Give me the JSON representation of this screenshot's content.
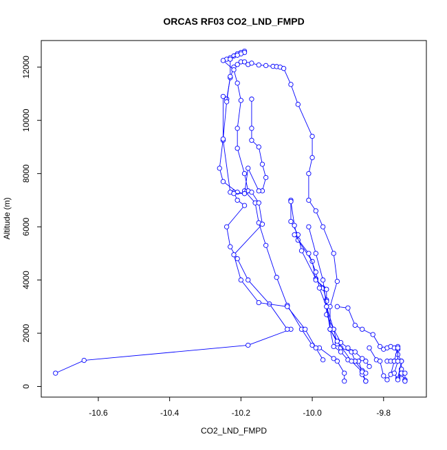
{
  "chart_data": {
    "type": "line",
    "title": "ORCAS RF03 CO2_LND_FMPD",
    "xlabel": "CO2_LND_FMPD",
    "ylabel": "Altitude (m)",
    "xlim": [
      -10.76,
      -9.68
    ],
    "ylim": [
      -400,
      13000
    ],
    "xticks": [
      -10.6,
      -10.4,
      -10.2,
      -10.0,
      -9.8
    ],
    "xtick_labels": [
      "-10.6",
      "-10.4",
      "-10.2",
      "-10.0",
      "-9.8"
    ],
    "yticks": [
      0,
      2000,
      4000,
      6000,
      8000,
      10000,
      12000
    ],
    "ytick_labels": [
      "0",
      "2000",
      "4000",
      "6000",
      "8000",
      "10000",
      "12000"
    ],
    "grid": false,
    "legend": "none",
    "marker": "open-circle",
    "line_color": "#0000ff",
    "series": [
      {
        "points": [
          [
            -10.72,
            500
          ],
          [
            -10.64,
            980
          ],
          [
            -10.18,
            1550
          ],
          [
            -10.06,
            2150
          ],
          [
            -10.07,
            2150
          ],
          [
            -10.12,
            3100
          ],
          [
            -10.18,
            4000
          ],
          [
            -10.21,
            4800
          ],
          [
            -10.23,
            5250
          ],
          [
            -10.24,
            6000
          ],
          [
            -10.19,
            6800
          ],
          [
            -10.21,
            7000
          ],
          [
            -10.22,
            7300
          ],
          [
            -10.23,
            7300
          ],
          [
            -10.25,
            9250
          ],
          [
            -10.25,
            10900
          ],
          [
            -10.24,
            10800
          ],
          [
            -10.24,
            10800
          ],
          [
            -10.23,
            11600
          ],
          [
            -10.22,
            12000
          ],
          [
            -10.21,
            12100
          ],
          [
            -10.2,
            12200
          ],
          [
            -10.19,
            12200
          ],
          [
            -10.18,
            12100
          ],
          [
            -10.17,
            12150
          ],
          [
            -10.15,
            12080
          ],
          [
            -10.13,
            12060
          ],
          [
            -10.11,
            12030
          ],
          [
            -10.1,
            12020
          ],
          [
            -10.09,
            12000
          ],
          [
            -10.08,
            11950
          ],
          [
            -10.06,
            11350
          ],
          [
            -10.04,
            10600
          ],
          [
            -10.0,
            9400
          ],
          [
            -10.0,
            8600
          ],
          [
            -10.01,
            8000
          ],
          [
            -10.01,
            7000
          ],
          [
            -9.99,
            6600
          ],
          [
            -9.97,
            6000
          ],
          [
            -9.94,
            5000
          ],
          [
            -9.93,
            3950
          ],
          [
            -9.95,
            3000
          ],
          [
            -9.95,
            2150
          ],
          [
            -9.93,
            1650
          ],
          [
            -9.92,
            1450
          ],
          [
            -9.89,
            1300
          ],
          [
            -9.88,
            950
          ],
          [
            -9.87,
            950
          ],
          [
            -9.86,
            550
          ],
          [
            -9.85,
            200
          ],
          [
            -9.85,
            200
          ]
        ]
      },
      {
        "points": [
          [
            -10.19,
            12600
          ],
          [
            -10.2,
            12550
          ],
          [
            -10.21,
            12500
          ],
          [
            -10.22,
            12420
          ],
          [
            -10.23,
            12350
          ],
          [
            -10.24,
            12300
          ],
          [
            -10.25,
            12250
          ],
          [
            -10.22,
            11900
          ],
          [
            -10.21,
            11400
          ],
          [
            -10.2,
            10750
          ],
          [
            -10.21,
            9700
          ],
          [
            -10.21,
            8950
          ],
          [
            -10.19,
            8000
          ],
          [
            -10.18,
            7350
          ],
          [
            -10.19,
            7350
          ],
          [
            -10.16,
            6900
          ],
          [
            -10.15,
            6150
          ],
          [
            -10.13,
            5300
          ],
          [
            -10.1,
            4100
          ],
          [
            -10.07,
            3050
          ],
          [
            -10.03,
            2150
          ],
          [
            -10.0,
            1550
          ],
          [
            -9.98,
            1450
          ],
          [
            -9.94,
            1050
          ],
          [
            -9.93,
            950
          ],
          [
            -9.91,
            500
          ],
          [
            -9.91,
            200
          ]
        ]
      },
      {
        "points": [
          [
            -10.19,
            12550
          ],
          [
            -10.2,
            12500
          ],
          [
            -10.21,
            12450
          ],
          [
            -10.23,
            12300
          ],
          [
            -10.23,
            11650
          ],
          [
            -10.24,
            10700
          ],
          [
            -10.25,
            9300
          ],
          [
            -10.26,
            8200
          ],
          [
            -10.25,
            7700
          ],
          [
            -10.21,
            7300
          ],
          [
            -10.19,
            7250
          ],
          [
            -10.17,
            7300
          ],
          [
            -10.15,
            6900
          ],
          [
            -10.14,
            6100
          ],
          [
            -10.22,
            4950
          ],
          [
            -10.2,
            4000
          ],
          [
            -10.15,
            3150
          ],
          [
            -10.07,
            3000
          ],
          [
            -10.02,
            2150
          ],
          [
            -9.99,
            1450
          ],
          [
            -9.97,
            1000
          ]
        ]
      },
      {
        "points": [
          [
            -10.17,
            10800
          ],
          [
            -10.17,
            9700
          ],
          [
            -10.17,
            9250
          ],
          [
            -10.15,
            9000
          ],
          [
            -10.14,
            8350
          ],
          [
            -10.13,
            7850
          ],
          [
            -10.14,
            7350
          ],
          [
            -10.15,
            7350
          ],
          [
            -10.18,
            8200
          ],
          [
            -10.19,
            7250
          ],
          [
            -10.22,
            7250
          ]
        ]
      },
      {
        "points": [
          [
            -10.06,
            7000
          ],
          [
            -10.06,
            6200
          ],
          [
            -10.04,
            5700
          ],
          [
            -10.03,
            5100
          ],
          [
            -9.99,
            4050
          ],
          [
            -9.97,
            3700
          ],
          [
            -9.96,
            3250
          ],
          [
            -9.95,
            2150
          ],
          [
            -9.94,
            1500
          ],
          [
            -9.92,
            1300
          ],
          [
            -9.9,
            1000
          ],
          [
            -9.88,
            950
          ],
          [
            -9.86,
            600
          ],
          [
            -9.86,
            450
          ],
          [
            -9.85,
            200
          ]
        ]
      },
      {
        "points": [
          [
            -10.06,
            6950
          ],
          [
            -10.05,
            6050
          ],
          [
            -10.04,
            5500
          ],
          [
            -10.0,
            4700
          ],
          [
            -9.99,
            4000
          ],
          [
            -9.96,
            3650
          ],
          [
            -9.96,
            3200
          ],
          [
            -9.96,
            2700
          ],
          [
            -9.94,
            2150
          ],
          [
            -9.93,
            1600
          ]
        ]
      },
      {
        "points": [
          [
            -10.05,
            5700
          ],
          [
            -10.01,
            5000
          ],
          [
            -9.99,
            4300
          ],
          [
            -9.98,
            3700
          ],
          [
            -9.96,
            3000
          ],
          [
            -9.94,
            2150
          ],
          [
            -9.92,
            1650
          ],
          [
            -9.9,
            1450
          ],
          [
            -9.88,
            1300
          ],
          [
            -9.86,
            1050
          ],
          [
            -9.85,
            950
          ],
          [
            -9.84,
            750
          ]
        ]
      },
      {
        "points": [
          [
            -10.01,
            6000
          ],
          [
            -9.99,
            5000
          ],
          [
            -9.97,
            4000
          ],
          [
            -9.96,
            3000
          ],
          [
            -9.95,
            2150
          ],
          [
            -9.93,
            1700
          ],
          [
            -9.89,
            950
          ],
          [
            -9.86,
            550
          ],
          [
            -9.85,
            500
          ]
        ]
      },
      {
        "points": [
          [
            -9.93,
            3000
          ],
          [
            -9.9,
            2950
          ],
          [
            -9.88,
            2300
          ],
          [
            -9.86,
            2150
          ],
          [
            -9.83,
            1950
          ],
          [
            -9.81,
            1500
          ],
          [
            -9.8,
            1400
          ],
          [
            -9.79,
            1450
          ],
          [
            -9.78,
            1500
          ],
          [
            -9.77,
            1450
          ],
          [
            -9.76,
            1400
          ],
          [
            -9.76,
            1400
          ],
          [
            -9.76,
            1200
          ],
          [
            -9.75,
            950
          ],
          [
            -9.75,
            650
          ],
          [
            -9.75,
            450
          ],
          [
            -9.74,
            250
          ],
          [
            -9.74,
            200
          ]
        ]
      },
      {
        "points": [
          [
            -9.84,
            1450
          ],
          [
            -9.82,
            1000
          ],
          [
            -9.81,
            950
          ],
          [
            -9.8,
            400
          ],
          [
            -9.79,
            250
          ],
          [
            -9.78,
            450
          ],
          [
            -9.77,
            950
          ],
          [
            -9.77,
            950
          ],
          [
            -9.76,
            1500
          ],
          [
            -9.76,
            1450
          ],
          [
            -9.76,
            950
          ],
          [
            -9.75,
            950
          ],
          [
            -9.76,
            300
          ],
          [
            -9.75,
            500
          ],
          [
            -9.75,
            450
          ]
        ]
      },
      {
        "points": [
          [
            -9.79,
            950
          ],
          [
            -9.78,
            950
          ],
          [
            -9.77,
            950
          ],
          [
            -9.76,
            950
          ],
          [
            -9.77,
            500
          ],
          [
            -9.76,
            250
          ],
          [
            -9.75,
            500
          ],
          [
            -9.74,
            500
          ],
          [
            -9.74,
            200
          ]
        ]
      }
    ]
  }
}
